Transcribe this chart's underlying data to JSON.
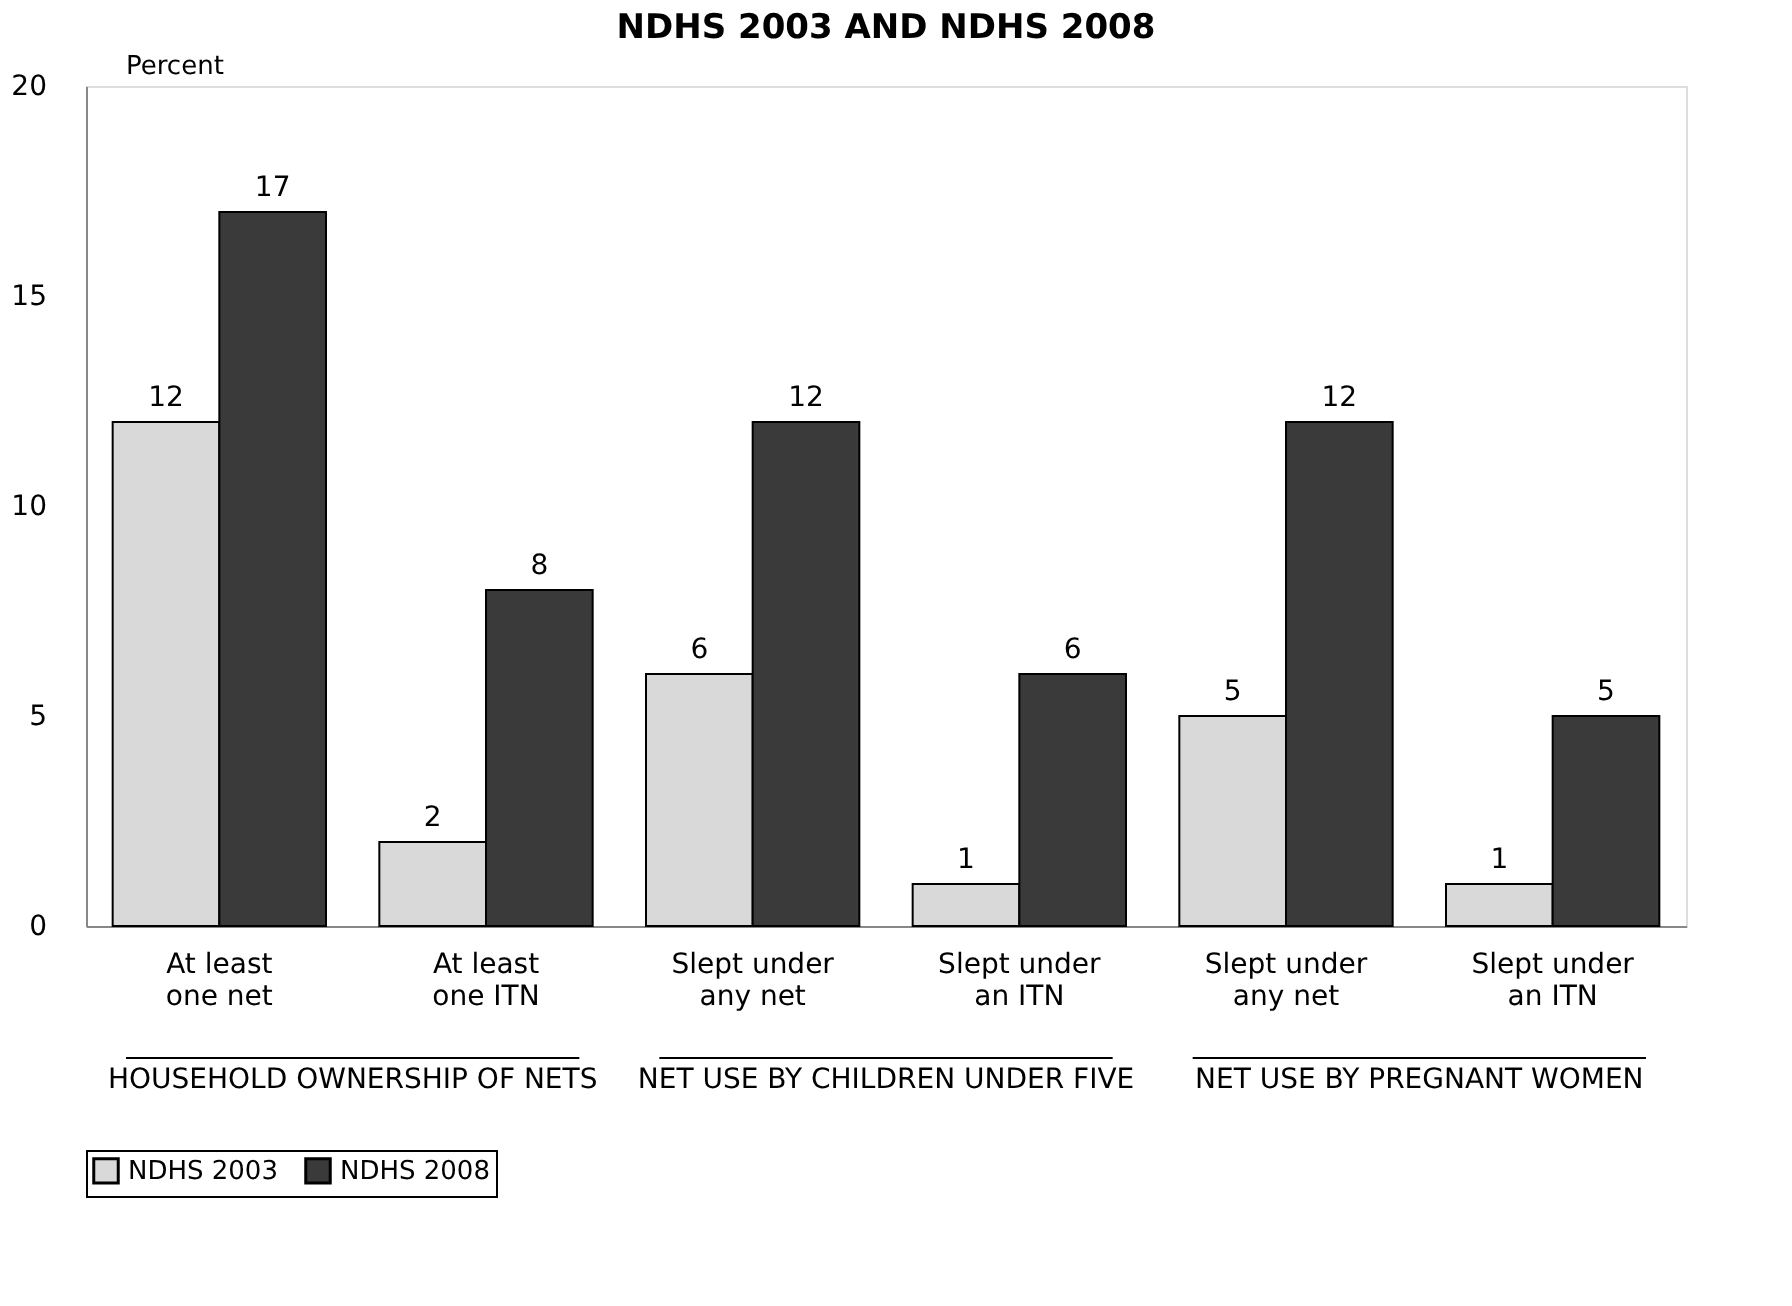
{
  "chart_data": {
    "type": "bar",
    "title": "NDHS 2003 AND NDHS 2008",
    "ylabel": "Percent",
    "categories": [
      "At least one net",
      "At least one ITN",
      "Slept under any net",
      "Slept under an ITN",
      "Slept under any net",
      "Slept under an ITN"
    ],
    "series": [
      {
        "name": "NDHS 2003",
        "color": "#d9d9d9",
        "values": [
          12,
          2,
          6,
          1,
          5,
          1
        ]
      },
      {
        "name": "NDHS 2008",
        "color": "#3a3a3a",
        "values": [
          17,
          8,
          12,
          6,
          12,
          5
        ]
      }
    ],
    "ylim": [
      0,
      20
    ],
    "yticks": [
      0,
      5,
      10,
      15,
      20
    ],
    "grid": false,
    "data_labels": true,
    "legend": "bottom",
    "annotations": [
      "HOUSEHOLD OWNERSHIP OF NETS",
      "NET USE BY CHILDREN UNDER FIVE",
      "NET USE BY PREGNANT WOMEN"
    ]
  }
}
